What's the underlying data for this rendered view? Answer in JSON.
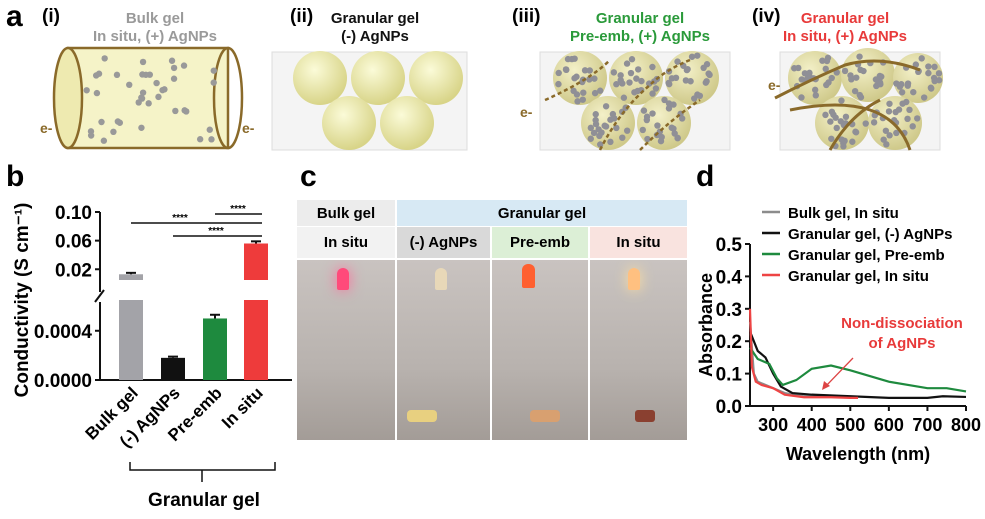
{
  "panel_a": {
    "label": "a",
    "items": [
      {
        "num": "(i)",
        "title1": "Bulk gel",
        "title2": "In situ, (+) AgNPs",
        "color": "#9a9a9a",
        "electron": "e-"
      },
      {
        "num": "(ii)",
        "title1": "Granular gel",
        "title2": "(-) AgNPs",
        "color": "#111111"
      },
      {
        "num": "(iii)",
        "title1": "Granular gel",
        "title2": "Pre-emb, (+) AgNPs",
        "color": "#2a9a3a",
        "electron": "e-"
      },
      {
        "num": "(iv)",
        "title1": "Granular gel",
        "title2": "In situ, (+) AgNPs",
        "color": "#e83a3a",
        "electron": "e-"
      }
    ]
  },
  "panel_c": {
    "label": "c",
    "header_bulk": "Bulk gel",
    "header_granular": "Granular gel",
    "sub": [
      "In situ",
      "(-) AgNPs",
      "Pre-emb",
      "In situ"
    ]
  },
  "chart_data": [
    {
      "panel": "b",
      "type": "bar",
      "ylabel": "Conductivity (S cm⁻¹)",
      "categories": [
        "Bulk gel",
        "(-) AgNPs",
        "Pre-emb",
        "In situ"
      ],
      "colors": [
        "#a3a3a8",
        "#111111",
        "#1e8a3e",
        "#ee3b3b"
      ],
      "values": [
        0.013,
        0.00018,
        0.0005,
        0.056
      ],
      "errors": [
        0.002,
        1e-05,
        3e-05,
        0.003
      ],
      "yticks_upper": [
        "0.10",
        "0.06",
        "0.02"
      ],
      "yticks_lower": [
        "0.0004",
        "0.0000"
      ],
      "ylim_lower": [
        0,
        0.00065
      ],
      "ylim_upper": [
        0.005,
        0.1
      ],
      "axis_break": true,
      "significance": [
        {
          "from": "Bulk gel",
          "to": "In situ",
          "label": "****"
        },
        {
          "from": "(-) AgNPs",
          "to": "In situ",
          "label": "****"
        },
        {
          "from": "Pre-emb",
          "to": "In situ",
          "label": "****"
        }
      ],
      "group_label": "Granular gel"
    },
    {
      "panel": "d",
      "type": "line",
      "xlabel": "Wavelength (nm)",
      "ylabel": "Absorbance",
      "xlim": [
        240,
        800
      ],
      "ylim": [
        0,
        0.5
      ],
      "xticks": [
        "300",
        "400",
        "500",
        "600",
        "700",
        "800"
      ],
      "yticks": [
        "0.0",
        "0.1",
        "0.2",
        "0.3",
        "0.4",
        "0.5"
      ],
      "legend_position": "top-right",
      "annotation": {
        "line1": "Non-dissociation",
        "line2": "of AgNPs",
        "color": "#e83a3a"
      },
      "series": [
        {
          "name": "Bulk gel, In situ",
          "color": "#8c8c8c",
          "x": [
            240,
            250,
            260,
            280,
            300,
            330,
            380,
            450,
            500,
            520
          ],
          "y": [
            0.26,
            0.1,
            0.075,
            0.065,
            0.055,
            0.04,
            0.03,
            0.03,
            0.028,
            0.028
          ]
        },
        {
          "name": "Granular gel, (-) AgNPs",
          "color": "#111111",
          "x": [
            240,
            260,
            280,
            300,
            320,
            350,
            400,
            500,
            600,
            700,
            740,
            800
          ],
          "y": [
            0.23,
            0.17,
            0.15,
            0.1,
            0.06,
            0.04,
            0.035,
            0.03,
            0.025,
            0.025,
            0.03,
            0.028
          ]
        },
        {
          "name": "Granular gel, Pre-emb",
          "color": "#1e8a3e",
          "x": [
            240,
            260,
            290,
            310,
            325,
            360,
            400,
            450,
            500,
            600,
            700,
            750,
            800
          ],
          "y": [
            0.18,
            0.145,
            0.13,
            0.085,
            0.065,
            0.08,
            0.115,
            0.125,
            0.11,
            0.075,
            0.055,
            0.055,
            0.045
          ]
        },
        {
          "name": "Granular gel, In situ",
          "color": "#ee4444",
          "x": [
            240,
            245,
            255,
            270,
            300,
            330,
            380,
            450,
            500,
            520
          ],
          "y": [
            0.3,
            0.12,
            0.075,
            0.065,
            0.055,
            0.035,
            0.027,
            0.027,
            0.025,
            0.025
          ]
        }
      ]
    }
  ]
}
